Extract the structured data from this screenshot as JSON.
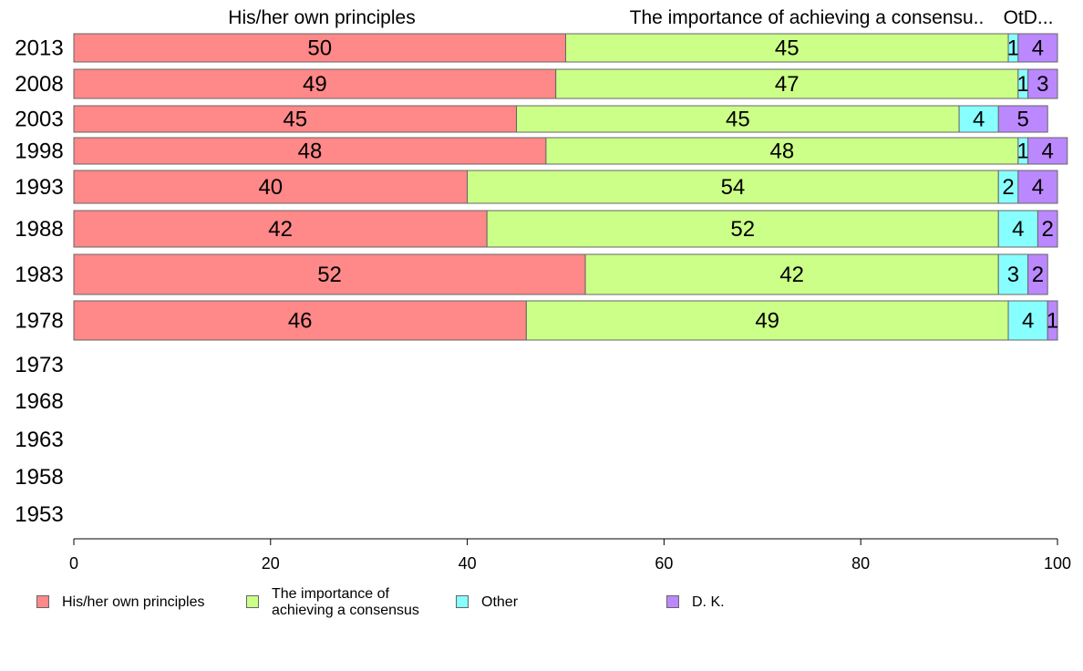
{
  "chart_data": {
    "type": "bar",
    "orientation": "horizontal",
    "stacked": true,
    "categories": [
      "2013",
      "2008",
      "2003",
      "1998",
      "1993",
      "1988",
      "1983",
      "1978",
      "1973",
      "1968",
      "1963",
      "1958",
      "1953"
    ],
    "series": [
      {
        "name": "His/her own principles",
        "color": "#ff8888",
        "values": [
          50,
          49,
          45,
          48,
          40,
          42,
          52,
          46,
          null,
          null,
          null,
          null,
          null
        ]
      },
      {
        "name": "The importance of achieving a consensus",
        "color": "#ccff88",
        "values": [
          45,
          47,
          45,
          48,
          54,
          52,
          42,
          49,
          null,
          null,
          null,
          null,
          null
        ]
      },
      {
        "name": "Other",
        "color": "#88ffff",
        "values": [
          1,
          1,
          4,
          1,
          2,
          4,
          3,
          4,
          null,
          null,
          null,
          null,
          null
        ]
      },
      {
        "name": "D. K.",
        "color": "#bb88ff",
        "values": [
          4,
          3,
          5,
          4,
          4,
          2,
          2,
          1,
          null,
          null,
          null,
          null,
          null
        ]
      }
    ],
    "data_labels": [
      [
        "50",
        "45",
        "1",
        "4"
      ],
      [
        "49",
        "47",
        "1",
        "3"
      ],
      [
        "45",
        "45",
        "4",
        "5"
      ],
      [
        "48",
        "48",
        "1",
        "4"
      ],
      [
        "40",
        "54",
        "2",
        "4"
      ],
      [
        "42",
        "52",
        "4",
        "2"
      ],
      [
        "52",
        "42",
        "3",
        "2"
      ],
      [
        "46",
        "49",
        "4",
        "1"
      ]
    ],
    "top_labels": [
      "His/her own principles",
      "The importance of achieving a consensu..",
      "OtD..."
    ],
    "xlim": [
      0,
      100
    ],
    "xticks": [
      "0",
      "20",
      "40",
      "60",
      "80",
      "100"
    ],
    "grid": false,
    "legend_position": "bottom"
  },
  "legend": {
    "items": [
      {
        "label": "His/her own principles",
        "color": "#ff8888"
      },
      {
        "label": "The importance of\nachieving a consensus",
        "color": "#ccff88"
      },
      {
        "label": "Other",
        "color": "#88ffff"
      },
      {
        "label": "D. K.",
        "color": "#bb88ff"
      }
    ]
  }
}
